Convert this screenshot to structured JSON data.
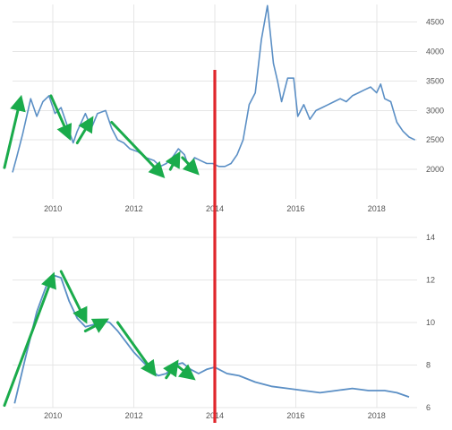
{
  "colors": {
    "series": "#5b8fc5",
    "annotation_arrow": "#1aab4b",
    "marker_line": "#e0262b",
    "grid": "#e6e6e6",
    "tick_text": "#555555"
  },
  "chart_data": [
    {
      "type": "line",
      "title": "",
      "xlabel": "",
      "ylabel": "",
      "xlim": [
        2009.0,
        2019.0
      ],
      "ylim": [
        1500,
        4800
      ],
      "grid": true,
      "y_axis_side": "right",
      "x_ticks": [
        2010,
        2012,
        2014,
        2016,
        2018
      ],
      "x_tick_labels": [
        "2010",
        "2012",
        "2014",
        "2016",
        "2018"
      ],
      "y_ticks": [
        2000,
        2500,
        3000,
        3500,
        4000,
        4500
      ],
      "y_tick_labels": [
        "2000",
        "2500",
        "3000",
        "3500",
        "4000",
        "4500"
      ],
      "series": [
        {
          "x": [
            2009.0,
            2009.1,
            2009.25,
            2009.45,
            2009.6,
            2009.75,
            2009.9,
            2010.05,
            2010.2,
            2010.35,
            2010.5,
            2010.6,
            2010.8,
            2010.95,
            2011.1,
            2011.3,
            2011.45,
            2011.6,
            2011.75,
            2011.9,
            2012.1,
            2012.3,
            2012.5,
            2012.65,
            2012.8,
            2012.95,
            2013.1,
            2013.25,
            2013.35,
            2013.5,
            2013.65,
            2013.8,
            2013.95,
            2014.1,
            2014.25,
            2014.4,
            2014.55,
            2014.7,
            2014.85,
            2015.0,
            2015.15,
            2015.3,
            2015.45,
            2015.55,
            2015.65,
            2015.8,
            2015.95,
            2016.05,
            2016.2,
            2016.35,
            2016.5,
            2016.65,
            2016.8,
            2016.95,
            2017.1,
            2017.25,
            2017.4,
            2017.55,
            2017.7,
            2017.85,
            2018.0,
            2018.1,
            2018.2,
            2018.35,
            2018.5,
            2018.65,
            2018.8,
            2018.95
          ],
          "y": [
            1950,
            2200,
            2600,
            3200,
            2900,
            3150,
            3250,
            2950,
            3050,
            2750,
            2450,
            2650,
            2950,
            2700,
            2950,
            3000,
            2700,
            2500,
            2450,
            2350,
            2300,
            2200,
            2150,
            2050,
            2100,
            2200,
            2350,
            2250,
            2050,
            2200,
            2150,
            2100,
            2100,
            2050,
            2050,
            2100,
            2250,
            2500,
            3100,
            3300,
            4200,
            4780,
            3800,
            3500,
            3150,
            3550,
            3550,
            2900,
            3100,
            2850,
            3000,
            3050,
            3100,
            3150,
            3200,
            3150,
            3250,
            3300,
            3350,
            3400,
            3300,
            3450,
            3200,
            3150,
            2800,
            2650,
            2550,
            2500
          ]
        }
      ],
      "annotation_arrows": [
        {
          "from": [
            2008.8,
            2030
          ],
          "to": [
            2009.2,
            3200
          ]
        },
        {
          "from": [
            2009.95,
            3250
          ],
          "to": [
            2010.4,
            2550
          ]
        },
        {
          "from": [
            2010.6,
            2450
          ],
          "to": [
            2010.95,
            2850
          ]
        },
        {
          "from": [
            2011.45,
            2800
          ],
          "to": [
            2012.7,
            1900
          ]
        },
        {
          "from": [
            2012.9,
            2000
          ],
          "to": [
            2013.1,
            2250
          ]
        },
        {
          "from": [
            2013.2,
            2200
          ],
          "to": [
            2013.55,
            1950
          ]
        }
      ],
      "marker_line_x": 2014.0
    },
    {
      "type": "line",
      "title": "",
      "xlabel": "",
      "ylabel": "",
      "xlim": [
        2009.0,
        2019.0
      ],
      "ylim": [
        6,
        14
      ],
      "grid": true,
      "y_axis_side": "right",
      "x_ticks": [
        2010,
        2012,
        2014,
        2016,
        2018
      ],
      "x_tick_labels": [
        "2010",
        "2012",
        "2014",
        "2016",
        "2018"
      ],
      "y_ticks": [
        6,
        8,
        10,
        12,
        14
      ],
      "y_tick_labels": [
        "6",
        "8",
        "10",
        "12",
        "14"
      ],
      "series": [
        {
          "x": [
            2009.05,
            2009.3,
            2009.6,
            2009.85,
            2010.05,
            2010.2,
            2010.4,
            2010.6,
            2010.8,
            2011.0,
            2011.2,
            2011.4,
            2011.6,
            2011.8,
            2012.0,
            2012.2,
            2012.4,
            2012.6,
            2012.8,
            2013.0,
            2013.2,
            2013.4,
            2013.6,
            2013.8,
            2014.0,
            2014.3,
            2014.6,
            2015.0,
            2015.4,
            2015.8,
            2016.2,
            2016.6,
            2017.0,
            2017.4,
            2017.8,
            2018.2,
            2018.5,
            2018.8
          ],
          "y": [
            6.2,
            8.2,
            10.5,
            11.8,
            12.2,
            12.1,
            11.0,
            10.2,
            9.8,
            9.9,
            10.1,
            10.0,
            9.6,
            9.1,
            8.6,
            8.2,
            7.8,
            7.5,
            7.6,
            8.0,
            8.1,
            7.8,
            7.6,
            7.8,
            7.9,
            7.6,
            7.5,
            7.2,
            7.0,
            6.9,
            6.8,
            6.7,
            6.8,
            6.9,
            6.8,
            6.8,
            6.7,
            6.5
          ]
        }
      ],
      "annotation_arrows": [
        {
          "from": [
            2008.8,
            6.1
          ],
          "to": [
            2010.0,
            12.2
          ]
        },
        {
          "from": [
            2010.2,
            12.4
          ],
          "to": [
            2010.8,
            10.1
          ]
        },
        {
          "from": [
            2010.8,
            9.6
          ],
          "to": [
            2011.3,
            10.1
          ]
        },
        {
          "from": [
            2011.6,
            10.0
          ],
          "to": [
            2012.5,
            7.6
          ]
        },
        {
          "from": [
            2012.8,
            7.4
          ],
          "to": [
            2013.05,
            8.1
          ]
        },
        {
          "from": [
            2013.05,
            8.0
          ],
          "to": [
            2013.45,
            7.4
          ]
        }
      ],
      "marker_line_x": 2014.0
    }
  ]
}
